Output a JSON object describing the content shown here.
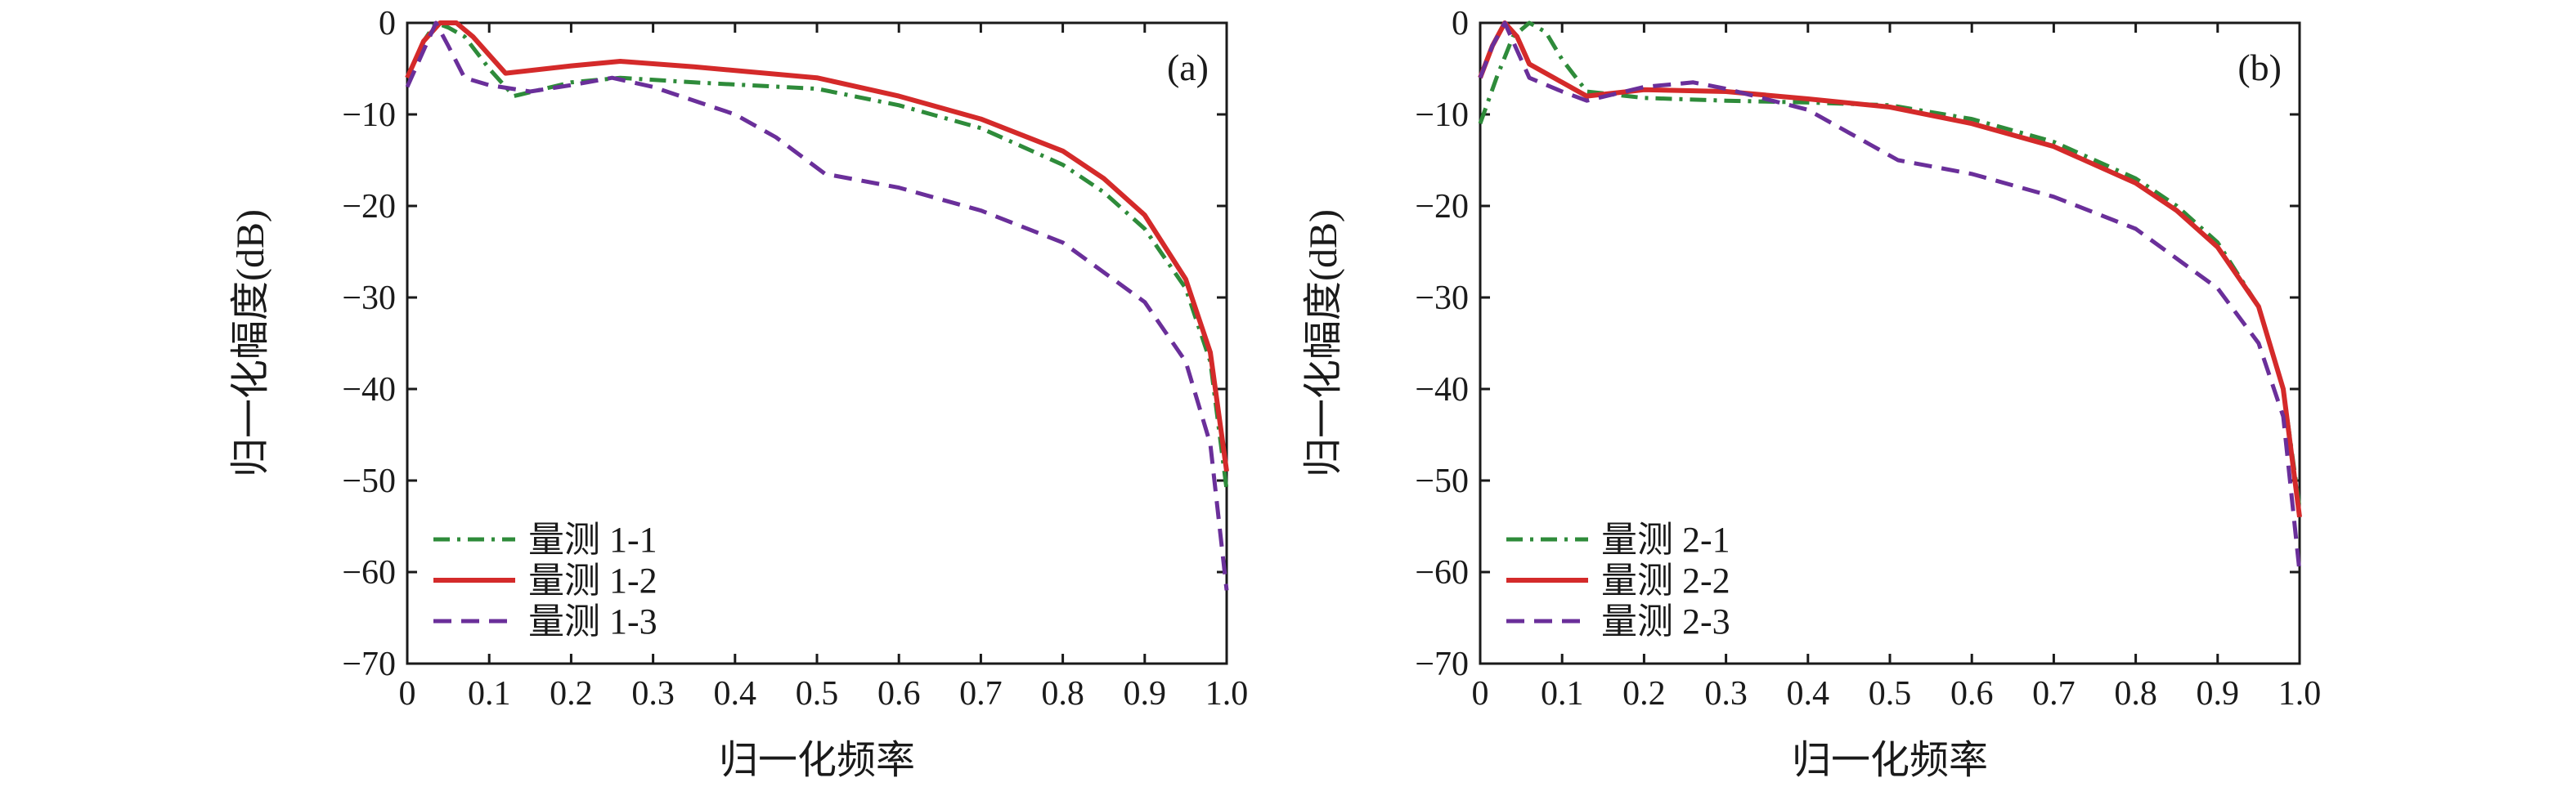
{
  "colors": {
    "series1": "#2e8b3a",
    "series2": "#d42a2a",
    "series3": "#6a2f9a",
    "axis": "#1a1a1a"
  },
  "chart_data": [
    {
      "type": "line",
      "panel_label": "(a)",
      "xlabel": "归一化频率",
      "ylabel": "归一化幅度(dB)",
      "xlim": [
        0,
        1.0
      ],
      "ylim": [
        -70,
        0
      ],
      "xticks": [
        "0",
        "0.1",
        "0.2",
        "0.3",
        "0.4",
        "0.5",
        "0.6",
        "0.7",
        "0.8",
        "0.9",
        "1.0"
      ],
      "yticks": [
        "0",
        "−10",
        "−20",
        "−30",
        "−40",
        "−50",
        "−60",
        "−70"
      ],
      "grid": false,
      "legend_position": "bottom-left",
      "series": [
        {
          "name": "量测 1-1",
          "style": "dashdot",
          "color": "#2e8b3a",
          "x": [
            0,
            0.02,
            0.035,
            0.05,
            0.07,
            0.1,
            0.13,
            0.2,
            0.26,
            0.35,
            0.5,
            0.6,
            0.7,
            0.8,
            0.85,
            0.9,
            0.95,
            0.98,
            1.0
          ],
          "y": [
            -6,
            -2,
            0,
            -0.5,
            -1.5,
            -5,
            -8,
            -6.5,
            -6,
            -6.5,
            -7.2,
            -9,
            -11.5,
            -15.5,
            -18.5,
            -22.5,
            -29,
            -37,
            -51
          ]
        },
        {
          "name": "量测 1-2",
          "style": "solid",
          "color": "#d42a2a",
          "x": [
            0,
            0.02,
            0.04,
            0.06,
            0.08,
            0.1,
            0.12,
            0.2,
            0.26,
            0.35,
            0.5,
            0.6,
            0.7,
            0.8,
            0.85,
            0.9,
            0.95,
            0.98,
            1.0
          ],
          "y": [
            -6,
            -2,
            0,
            0,
            -1.5,
            -3.5,
            -5.5,
            -4.7,
            -4.2,
            -4.8,
            -6,
            -8,
            -10.5,
            -14,
            -17,
            -21,
            -28,
            -36,
            -49
          ]
        },
        {
          "name": "量测 1-3",
          "style": "dashed",
          "color": "#6a2f9a",
          "x": [
            0,
            0.02,
            0.035,
            0.05,
            0.07,
            0.1,
            0.15,
            0.2,
            0.25,
            0.3,
            0.4,
            0.45,
            0.51,
            0.6,
            0.7,
            0.8,
            0.9,
            0.95,
            0.98,
            1.0
          ],
          "y": [
            -7,
            -3,
            0,
            -2.5,
            -6,
            -6.8,
            -7.5,
            -6.8,
            -6,
            -7,
            -10,
            -12.5,
            -16.5,
            -18,
            -20.5,
            -24,
            -30.5,
            -37,
            -46,
            -62
          ]
        }
      ]
    },
    {
      "type": "line",
      "panel_label": "(b)",
      "xlabel": "归一化频率",
      "ylabel": "归一化幅度(dB)",
      "xlim": [
        0,
        1.0
      ],
      "ylim": [
        -70,
        0
      ],
      "xticks": [
        "0",
        "0.1",
        "0.2",
        "0.3",
        "0.4",
        "0.5",
        "0.6",
        "0.7",
        "0.8",
        "0.9",
        "1.0"
      ],
      "yticks": [
        "0",
        "−10",
        "−20",
        "−30",
        "−40",
        "−50",
        "−60",
        "−70"
      ],
      "grid": false,
      "legend_position": "bottom-left",
      "series": [
        {
          "name": "量测 2-1",
          "style": "dashdot",
          "color": "#2e8b3a",
          "x": [
            0,
            0.02,
            0.04,
            0.06,
            0.08,
            0.1,
            0.13,
            0.2,
            0.3,
            0.4,
            0.5,
            0.6,
            0.7,
            0.8,
            0.85,
            0.9,
            0.95,
            0.98,
            1.0
          ],
          "y": [
            -11,
            -6,
            -1.5,
            0,
            -1,
            -4,
            -7.5,
            -8.2,
            -8.5,
            -8.7,
            -9,
            -10.5,
            -13,
            -17,
            -20,
            -24,
            -31,
            -40,
            -53
          ]
        },
        {
          "name": "量测 2-2",
          "style": "solid",
          "color": "#d42a2a",
          "x": [
            0,
            0.015,
            0.03,
            0.045,
            0.06,
            0.1,
            0.13,
            0.2,
            0.3,
            0.4,
            0.5,
            0.6,
            0.7,
            0.8,
            0.85,
            0.9,
            0.95,
            0.98,
            1.0
          ],
          "y": [
            -6,
            -2.5,
            0,
            -1.5,
            -4.5,
            -6.5,
            -8,
            -7.3,
            -7.5,
            -8.3,
            -9.2,
            -11,
            -13.5,
            -17.5,
            -20.5,
            -24.5,
            -31,
            -40,
            -54
          ]
        },
        {
          "name": "量测 2-3",
          "style": "dashed",
          "color": "#6a2f9a",
          "x": [
            0,
            0.015,
            0.03,
            0.045,
            0.06,
            0.1,
            0.13,
            0.2,
            0.26,
            0.3,
            0.4,
            0.45,
            0.51,
            0.6,
            0.7,
            0.8,
            0.9,
            0.95,
            0.98,
            1.0
          ],
          "y": [
            -6,
            -2.5,
            0,
            -3,
            -6,
            -7.5,
            -8.5,
            -7,
            -6.5,
            -7.2,
            -9.5,
            -12,
            -15,
            -16.5,
            -19,
            -22.5,
            -29,
            -35,
            -43,
            -60
          ]
        }
      ]
    }
  ]
}
